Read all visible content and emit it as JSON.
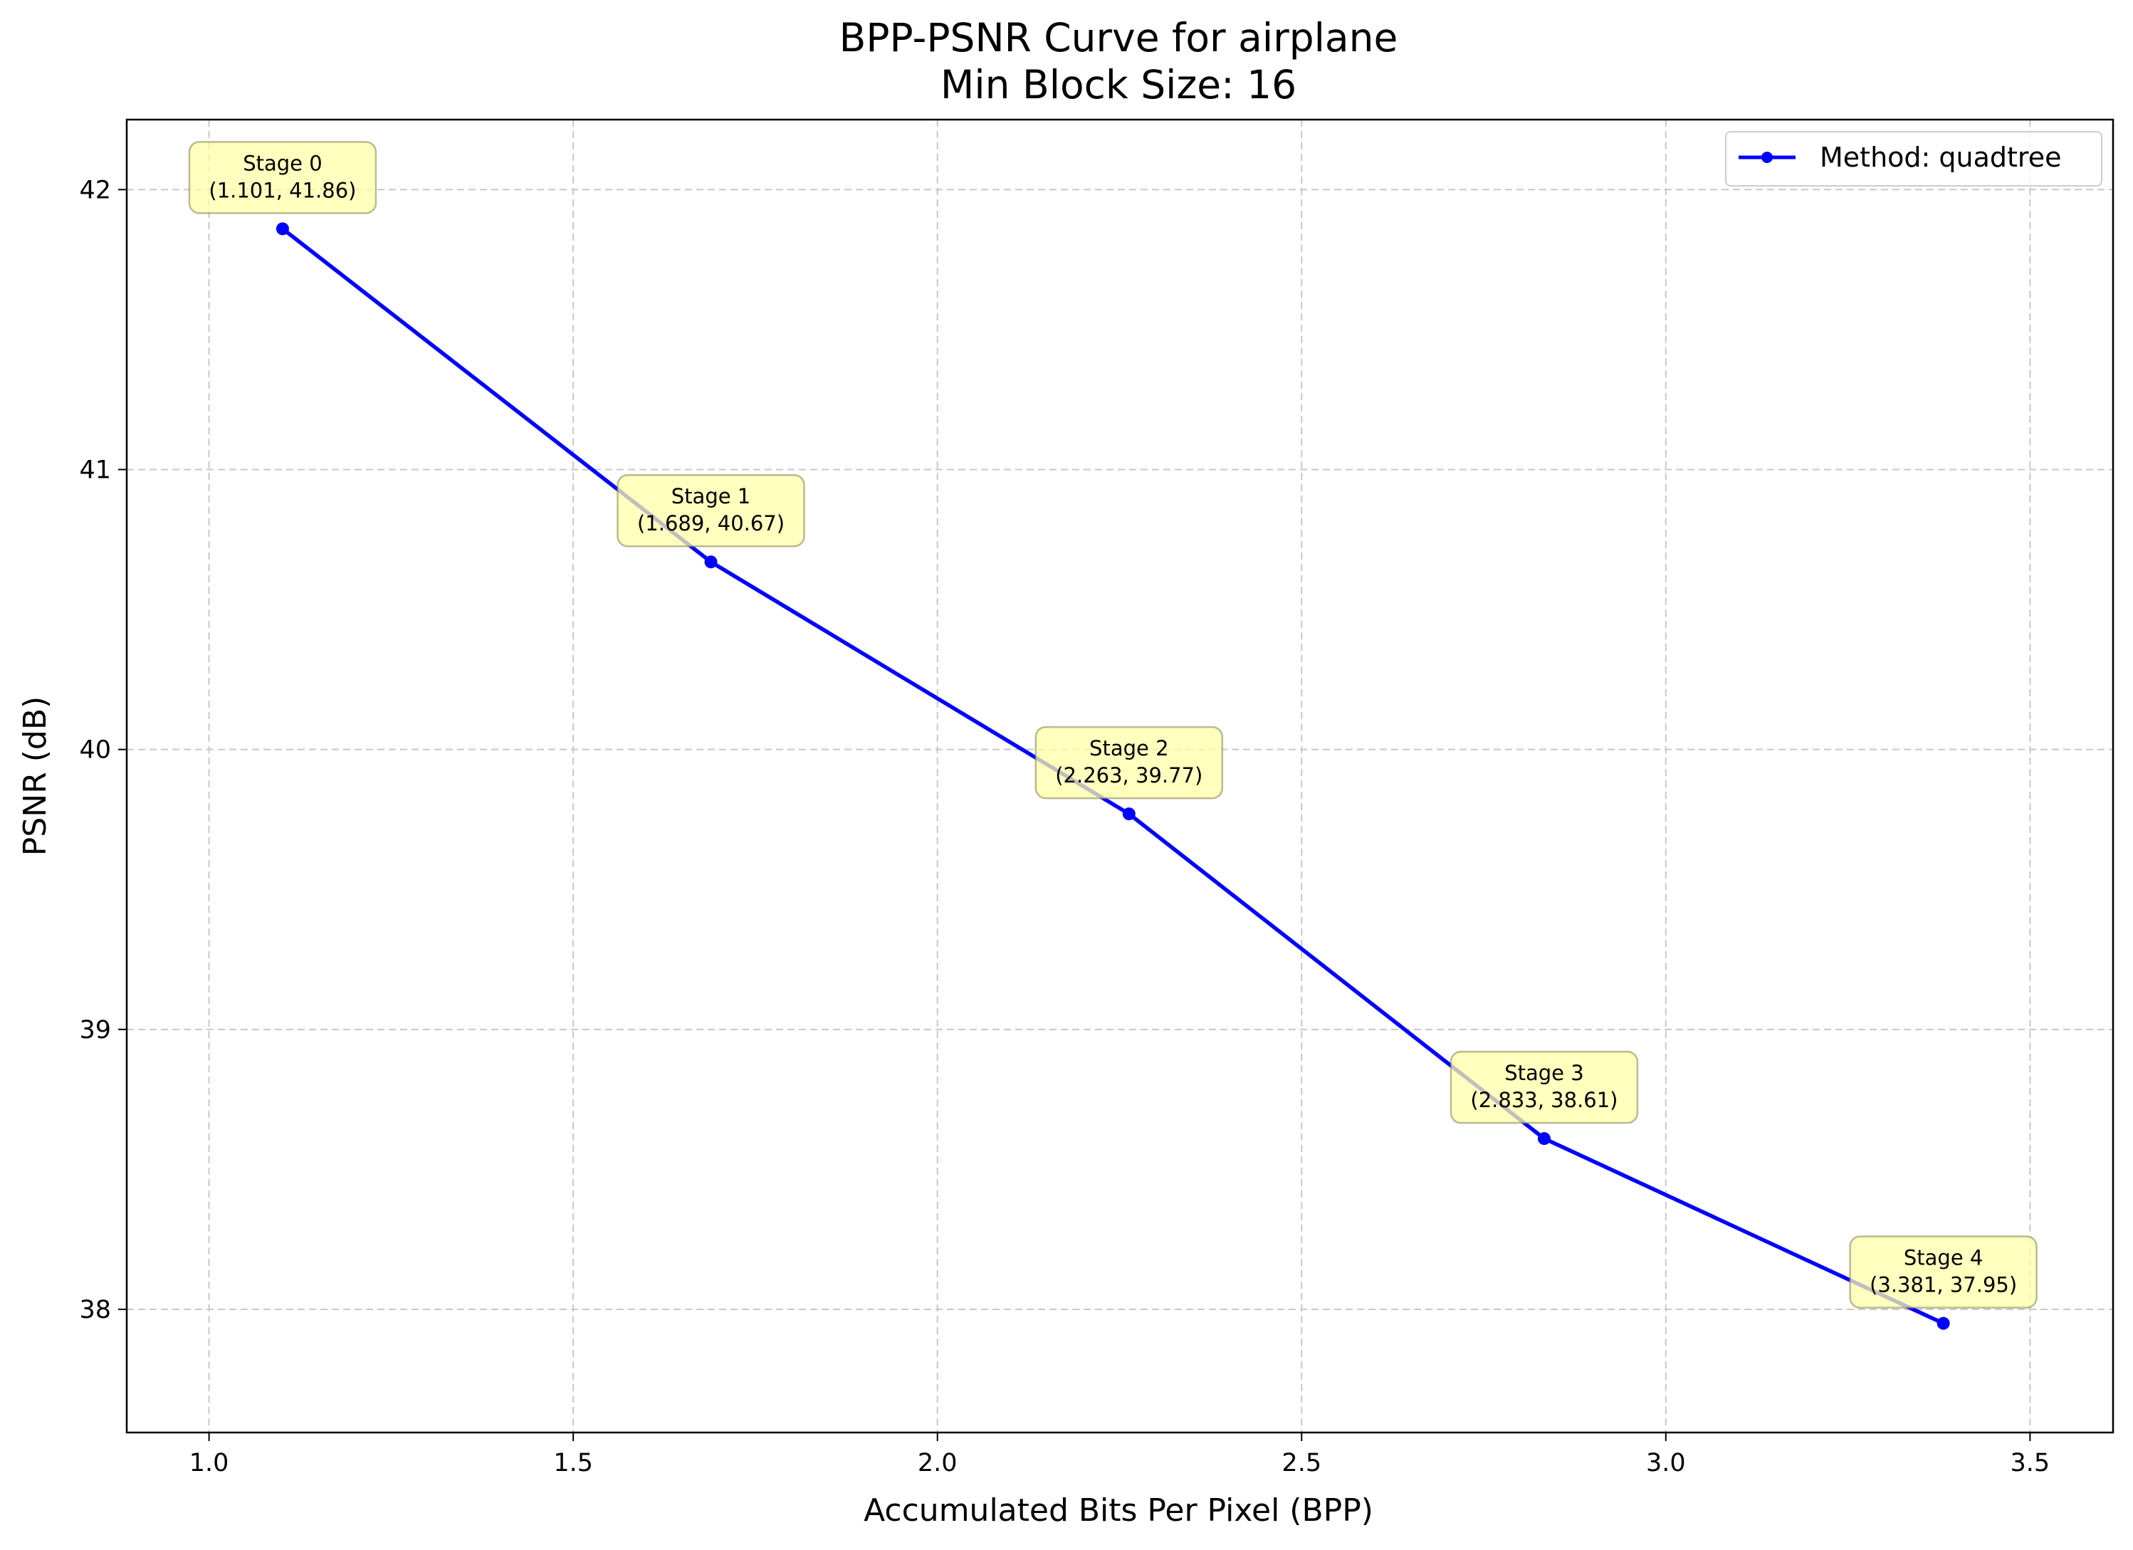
{
  "chart_data": {
    "type": "line",
    "title": "BPP-PSNR Curve for airplane",
    "subtitle": "Min Block Size: 16",
    "xlabel": "Accumulated Bits Per Pixel (BPP)",
    "ylabel": "PSNR (dB)",
    "xlim": [
      0.887,
      3.614
    ],
    "ylim": [
      37.56,
      42.25
    ],
    "xticks": [
      "1.0",
      "1.5",
      "2.0",
      "2.5",
      "3.0",
      "3.5"
    ],
    "yticks": [
      "38",
      "39",
      "40",
      "41",
      "42"
    ],
    "grid": true,
    "grid_style": "dashed",
    "legend_position": "top-right",
    "series": [
      {
        "name": "Method: quadtree",
        "color": "#0000ff",
        "marker": "circle",
        "x": [
          1.101,
          1.689,
          2.263,
          2.833,
          3.381
        ],
        "y": [
          41.86,
          40.67,
          39.77,
          38.61,
          37.95
        ]
      }
    ],
    "annotations": [
      {
        "line1": "Stage 0",
        "line2": "(1.101, 41.86)"
      },
      {
        "line1": "Stage 1",
        "line2": "(1.689, 40.67)"
      },
      {
        "line1": "Stage 2",
        "line2": "(2.263, 39.77)"
      },
      {
        "line1": "Stage 3",
        "line2": "(2.833, 38.61)"
      },
      {
        "line1": "Stage 4",
        "line2": "(3.381, 37.95)"
      }
    ],
    "annotation_box_color": "#ffffa8",
    "grid_color": "#c8c8c8"
  }
}
